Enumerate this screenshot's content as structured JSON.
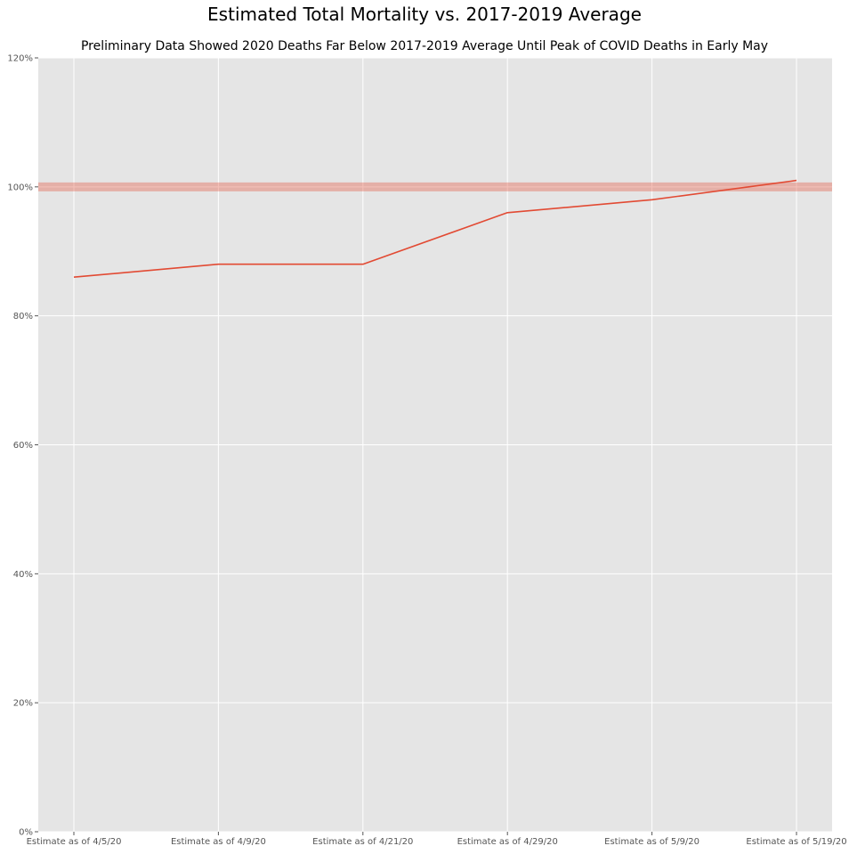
{
  "chart_data": {
    "type": "line",
    "title": "Estimated Total Mortality vs. 2017-2019 Average",
    "subtitle": "Preliminary Data Showed 2020 Deaths Far Below 2017-2019 Average Until Peak of COVID Deaths in Early May",
    "xlabel": "",
    "ylabel": "",
    "categories": [
      "Estimate as of 4/5/20",
      "Estimate as of 4/9/20",
      "Estimate as of 4/21/20",
      "Estimate as of 4/29/20",
      "Estimate as of 5/9/20",
      "Estimate as of 5/19/20"
    ],
    "series": [
      {
        "values": [
          86,
          88,
          88,
          96,
          98,
          101
        ],
        "color": "#e24a33"
      }
    ],
    "reference_line": {
      "value": 100,
      "color": "#e24a33",
      "opacity": 0.35
    },
    "ylim": [
      0,
      120
    ],
    "yticks": [
      0,
      20,
      40,
      60,
      80,
      100,
      120
    ],
    "ytick_labels": [
      "0%",
      "20%",
      "40%",
      "60%",
      "80%",
      "100%",
      "120%"
    ],
    "grid": true,
    "style": "ggplot",
    "background": "#e5e5e5"
  }
}
